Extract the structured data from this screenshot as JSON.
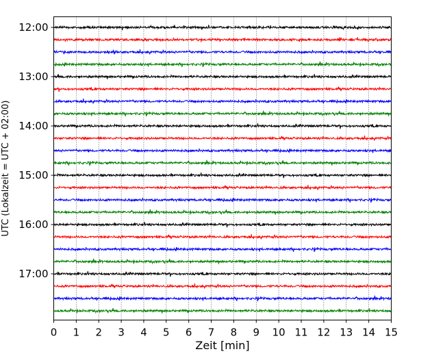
{
  "chart_data": {
    "type": "line",
    "subtype": "seismogram-helicorder",
    "xlabel": "Zeit  [min]",
    "ylabel": "UTC (Lokalzeit = UTC + 02:00)",
    "xlim": [
      0,
      15
    ],
    "x_ticks": [
      "0",
      "1",
      "2",
      "3",
      "4",
      "5",
      "6",
      "7",
      "8",
      "9",
      "10",
      "11",
      "12",
      "13",
      "14",
      "15"
    ],
    "y_ticks": [
      "12:00",
      "13:00",
      "14:00",
      "15:00",
      "16:00",
      "17:00"
    ],
    "trace_interval_minutes": 15,
    "trace_start": "12:00",
    "trace_count": 24,
    "trace_colors": [
      "#000000",
      "#ff0000",
      "#0000ff",
      "#008000"
    ],
    "vertical_grid": "dotted, every 1 min",
    "grid": true,
    "legend": "none"
  }
}
